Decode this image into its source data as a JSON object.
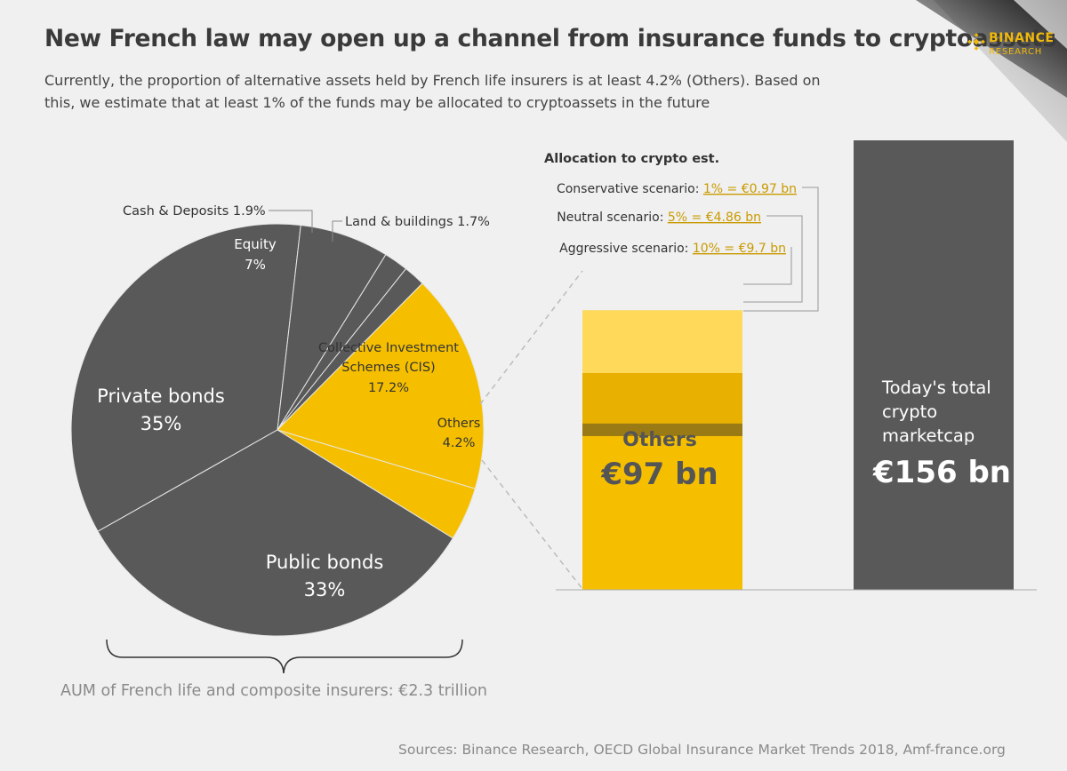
{
  "title": "New French law may open up a channel from insurance funds to cryptoassets",
  "subtitle": "Currently, the proportion of alternative assets held by French life insurers is at least 4.2% (Others). Based on this, we estimate that at least 1% of the funds may be allocated to cryptoassets in the future",
  "logo": {
    "line1": "BINANCE",
    "line2": "RESEARCH"
  },
  "colors": {
    "dark": "#595959",
    "yellow": "#f5bf00",
    "gold_text": "#c99a00",
    "light_yellow": "#ffd95a",
    "mid_yellow": "#e8b000",
    "brown": "#9a7a14"
  },
  "chart_data": [
    {
      "type": "pie",
      "slices": [
        {
          "label": "Private bonds",
          "value_label": "35%",
          "value": 35,
          "color": "#595959"
        },
        {
          "label": "Equity",
          "value_label": "7%",
          "value": 7,
          "color": "#595959"
        },
        {
          "label": "Cash & Deposits",
          "value_label": "1.9%",
          "value": 1.9,
          "color": "#595959"
        },
        {
          "label": "Land & buildings",
          "value_label": "1.7%",
          "value": 1.7,
          "color": "#595959"
        },
        {
          "label": "Collective Investment Schemes (CIS)",
          "value_label": "17.2%",
          "value": 17.2,
          "color": "#f5bf00"
        },
        {
          "label": "Others",
          "value_label": "4.2%",
          "value": 4.2,
          "color": "#f5bf00"
        },
        {
          "label": "Public bonds",
          "value_label": "33%",
          "value": 33,
          "color": "#595959"
        }
      ],
      "total_label": "AUM of French life and composite insurers: €2.3 trillion"
    },
    {
      "type": "bar",
      "categories": [
        "Others",
        "Today's total crypto marketcap"
      ],
      "values": [
        97,
        156
      ],
      "unit": "€ bn",
      "bar_labels": [
        {
          "name": "Others",
          "value": "€97 bn"
        },
        {
          "name": "Today's total crypto marketcap",
          "value": "€156 bn"
        }
      ],
      "allocation_title": "Allocation to crypto est.",
      "scenarios": [
        {
          "name": "Conservative scenario:",
          "value_text": "1% = €0.97 bn",
          "pct": 1,
          "amount": 0.97
        },
        {
          "name": "Neutral scenario:",
          "value_text": "5% = €4.86 bn",
          "pct": 5,
          "amount": 4.86
        },
        {
          "name": "Aggressive scenario:",
          "value_text": "10% = €9.7 bn",
          "pct": 10,
          "amount": 9.7
        }
      ]
    }
  ],
  "sources": "Sources: Binance Research, OECD Global Insurance Market Trends 2018, Amf-france.org"
}
